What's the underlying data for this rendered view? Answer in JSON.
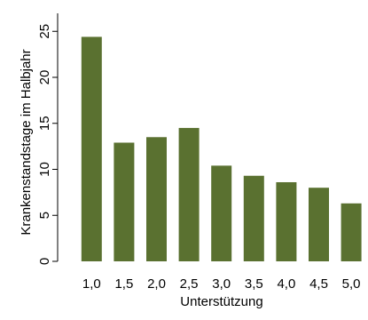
{
  "chart_data": {
    "type": "bar",
    "title": "",
    "xlabel": "Unterstützung",
    "ylabel": "Krankenstandstage im Halbjahr",
    "categories": [
      "1,0",
      "1,5",
      "2,0",
      "2,5",
      "3,0",
      "3,5",
      "4,0",
      "4,5",
      "5,0"
    ],
    "values": [
      24.4,
      12.9,
      13.5,
      14.5,
      10.4,
      9.3,
      8.6,
      8.0,
      6.3
    ],
    "ylim": [
      0,
      27
    ],
    "yticks": [
      0,
      5,
      10,
      15,
      20,
      25
    ],
    "ytick_labels": [
      "0",
      "5",
      "10",
      "15",
      "20",
      "25"
    ],
    "grid": false,
    "legend": "none",
    "bar_color": "#5a7130"
  }
}
